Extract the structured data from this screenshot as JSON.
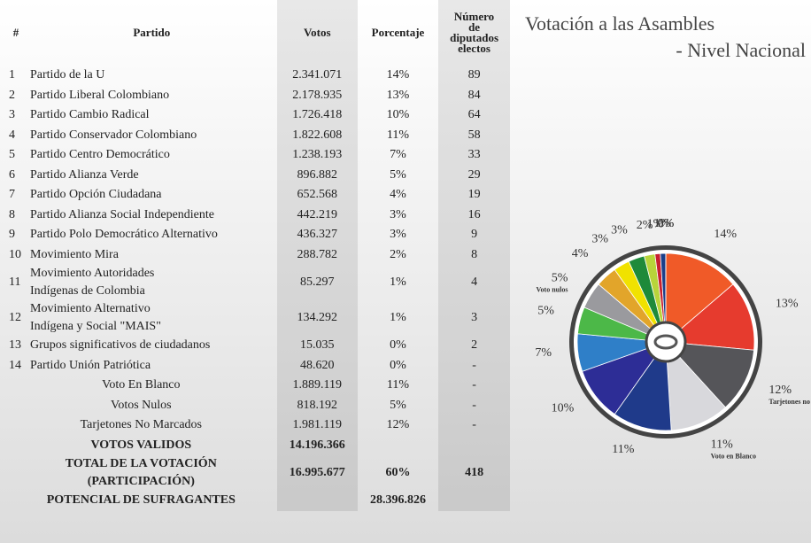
{
  "table": {
    "header": [
      "#",
      "Partido",
      "Votos",
      "Porcentaje",
      "Número\nde\ndiputados\nelectos"
    ],
    "rows": [
      [
        "1",
        "Partido de la U",
        "2.341.071",
        "14%",
        "89"
      ],
      [
        "2",
        "Partido Liberal Colombiano",
        "2.178.935",
        "13%",
        "84"
      ],
      [
        "3",
        "Partido Cambio Radical",
        "1.726.418",
        "10%",
        "64"
      ],
      [
        "4",
        "Partido Conservador Colombiano",
        "1.822.608",
        "11%",
        "58"
      ],
      [
        "5",
        "Partido Centro Democrático",
        "1.238.193",
        "7%",
        "33"
      ],
      [
        "6",
        "Partido Alianza Verde",
        "896.882",
        "5%",
        "29"
      ],
      [
        "7",
        "Partido Opción Ciudadana",
        "652.568",
        "4%",
        "19"
      ],
      [
        "8",
        "Partido Alianza Social Independiente",
        "442.219",
        "3%",
        "16"
      ],
      [
        "9",
        "Partido Polo Democrático Alternativo",
        "436.327",
        "3%",
        "9"
      ],
      [
        "10",
        "Movimiento Mira",
        "288.782",
        "2%",
        "8"
      ],
      [
        "11",
        "Movimiento Autoridades\nIndígenas de Colombia",
        "85.297",
        "1%",
        "4"
      ],
      [
        "12",
        "Movimiento Alternativo\nIndígena y Social \"MAIS\"",
        "134.292",
        "1%",
        "3"
      ],
      [
        "13",
        "Grupos significativos de ciudadanos",
        "15.035",
        "0%",
        "2"
      ],
      [
        "14",
        "Partido Unión Patriótica",
        "48.620",
        "0%",
        "-"
      ],
      [
        null,
        "Voto En Blanco",
        "1.889.119",
        "11%",
        "-"
      ],
      [
        null,
        "Votos Nulos",
        "818.192",
        "5%",
        "-"
      ],
      [
        null,
        "Tarjetones No Marcados",
        "1.981.119",
        "12%",
        "-"
      ],
      [
        null,
        "VOTOS VALIDOS",
        "14.196.366",
        null,
        null
      ],
      [
        null,
        "TOTAL DE LA VOTACIÓN\n(PARTICIPACIÓN)",
        "16.995.677",
        "60%",
        "418"
      ],
      [
        null,
        "POTENCIAL DE SUFRAGANTES",
        null,
        "28.396.826",
        null
      ]
    ]
  },
  "chart_data": {
    "type": "pie",
    "title": "Votación a las Asambles",
    "subtitle": "- Nivel Nacional",
    "categories": [
      null,
      null,
      "Tarjetones no marcados",
      "Voto en Blanco",
      null,
      null,
      null,
      null,
      "Voto nulos",
      null,
      null,
      null,
      null,
      null,
      null,
      null,
      null
    ],
    "values": [
      14,
      13,
      12,
      11,
      11,
      10,
      7,
      5,
      5,
      4,
      3,
      3,
      2,
      1,
      1,
      0,
      0
    ],
    "value_labels": [
      "14%",
      "13%",
      "12%",
      "11%",
      "11%",
      "10%",
      "7%",
      "5%",
      "5%",
      "4%",
      "3%",
      "3%",
      "2%",
      "1%",
      "1%",
      "0%",
      "0%"
    ],
    "colors": [
      "#f05a28",
      "#e63b2e",
      "#555559",
      "#d8d8dc",
      "#1f3a8a",
      "#2d2d96",
      "#2f7fc8",
      "#4cb848",
      "#9a9a9e",
      "#e2a52a",
      "#f1e200",
      "#1e8a3a",
      "#b8d43a",
      "#c8202f",
      "#1b3f8a",
      "#f0a000",
      "#8a1c1c"
    ]
  }
}
